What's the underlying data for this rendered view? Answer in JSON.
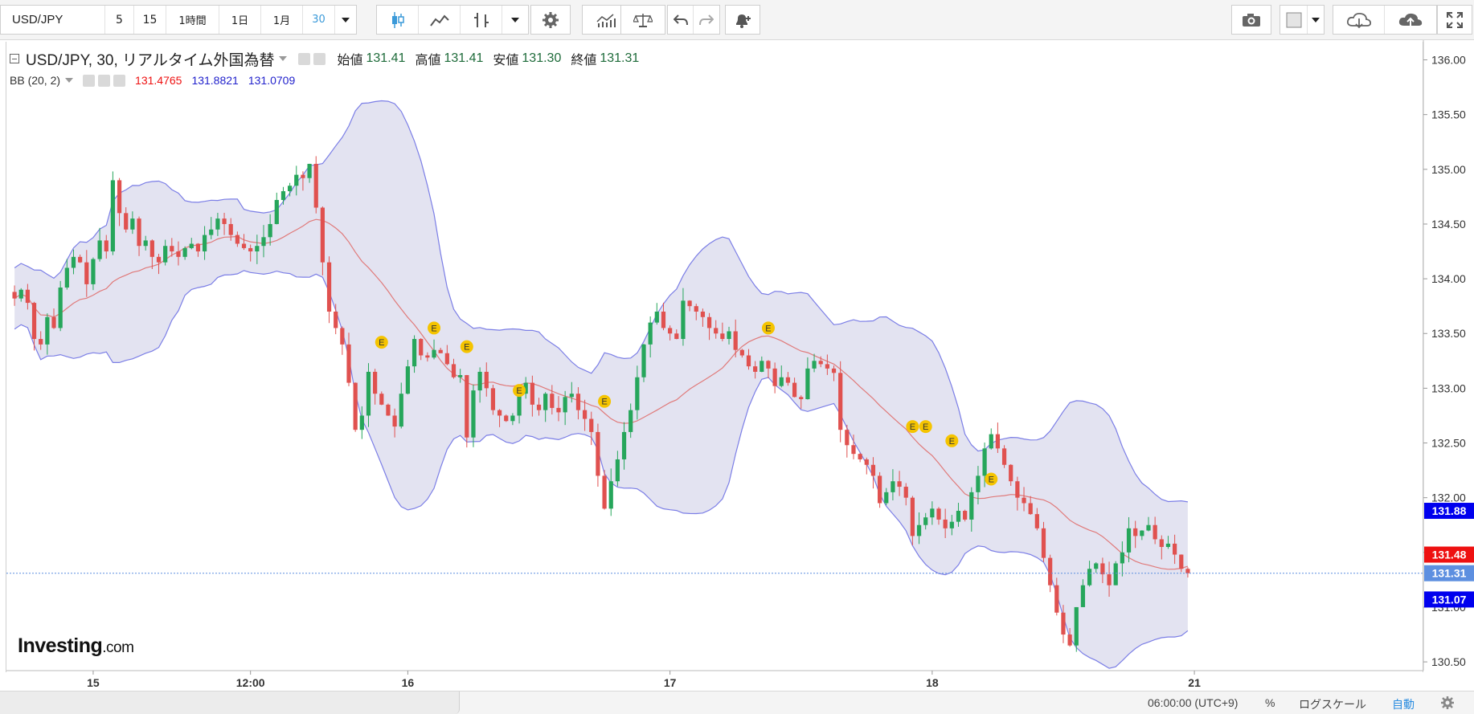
{
  "toolbar": {
    "symbol": "USD/JPY",
    "intervals": [
      "5",
      "15",
      "1時間",
      "1日",
      "1月",
      "30"
    ],
    "active_interval": "30"
  },
  "legend": {
    "title": "USD/JPY, 30, リアルタイム外国為替",
    "open_label": "始値",
    "open": "131.41",
    "high_label": "高値",
    "high": "131.41",
    "low_label": "安値",
    "low": "131.30",
    "close_label": "終値",
    "close": "131.31",
    "indicator": "BB (20, 2)",
    "bb_mid": "131.4765",
    "bb_upper": "131.8821",
    "bb_lower": "131.0709"
  },
  "colors": {
    "up": "#26a65b",
    "down": "#e0514f",
    "band_fill": "#e3e3f1",
    "band_line": "#7b7ee6",
    "mid_line": "#e07a7a",
    "price_tag": "#5d8fe0",
    "blue_tag": "#0000ee",
    "red_tag": "#ee1111"
  },
  "brand": {
    "name": "Investing",
    "suffix": ".com"
  },
  "status": {
    "time": "06:00:00 (UTC+9)",
    "percent": "%",
    "log": "ログスケール",
    "auto": "自動"
  },
  "chart_data": {
    "type": "candlestick",
    "title": "USD/JPY, 30, リアルタイム外国為替",
    "ylim": [
      130.42,
      136.18
    ],
    "y_ticks": [
      "136.00",
      "135.50",
      "135.00",
      "134.50",
      "134.00",
      "133.50",
      "133.00",
      "132.50",
      "132.00",
      "131.50",
      "131.00",
      "130.50"
    ],
    "x_tick_labels": [
      {
        "label": "15",
        "bar": 12
      },
      {
        "label": "12:00",
        "bar": 36
      },
      {
        "label": "16",
        "bar": 60
      },
      {
        "label": "17",
        "bar": 100
      },
      {
        "label": "18",
        "bar": 140
      },
      {
        "label": "21",
        "bar": 180
      }
    ],
    "price_tags": [
      {
        "value": "131.88",
        "kind": "upper"
      },
      {
        "value": "131.48",
        "kind": "mid"
      },
      {
        "value": "131.31",
        "kind": "last"
      },
      {
        "value": "131.07",
        "kind": "lower"
      }
    ],
    "close": [
      133.82,
      133.9,
      133.78,
      133.45,
      133.4,
      133.65,
      133.55,
      133.92,
      134.1,
      134.2,
      134.15,
      133.95,
      134.18,
      134.35,
      134.25,
      134.9,
      134.6,
      134.45,
      134.55,
      134.3,
      134.35,
      134.2,
      134.15,
      134.3,
      134.25,
      134.2,
      134.28,
      134.32,
      134.25,
      134.4,
      134.45,
      134.55,
      134.5,
      134.4,
      134.32,
      134.28,
      134.25,
      134.3,
      134.38,
      134.5,
      134.72,
      134.8,
      134.85,
      134.95,
      134.92,
      135.05,
      134.65,
      134.15,
      133.7,
      133.55,
      133.4,
      133.05,
      132.62,
      132.75,
      133.15,
      132.95,
      132.85,
      132.75,
      132.65,
      132.95,
      133.2,
      133.45,
      133.3,
      133.28,
      133.35,
      133.32,
      133.22,
      133.1,
      133.12,
      132.55,
      132.98,
      133.15,
      133.0,
      132.8,
      132.75,
      132.7,
      132.75,
      132.95,
      133.05,
      132.85,
      132.8,
      132.95,
      132.82,
      132.78,
      132.92,
      132.95,
      132.8,
      132.72,
      132.6,
      132.2,
      131.9,
      132.15,
      132.35,
      132.6,
      132.8,
      133.1,
      133.4,
      133.6,
      133.7,
      133.55,
      133.5,
      133.45,
      133.8,
      133.75,
      133.7,
      133.65,
      133.55,
      133.5,
      133.45,
      133.52,
      133.35,
      133.3,
      133.2,
      133.15,
      133.25,
      133.18,
      133.02,
      133.1,
      133.05,
      132.92,
      132.9,
      133.18,
      133.25,
      133.22,
      133.18,
      133.14,
      132.62,
      132.48,
      132.4,
      132.35,
      132.3,
      132.2,
      131.95,
      132.05,
      132.15,
      132.1,
      132.0,
      131.65,
      131.75,
      131.82,
      131.9,
      131.8,
      131.72,
      131.78,
      131.88,
      131.8,
      132.05,
      132.2,
      132.45,
      132.58,
      132.45,
      132.3,
      132.15,
      132.0,
      131.95,
      131.85,
      131.72,
      131.45,
      131.2,
      130.95,
      130.75,
      130.65,
      131.0,
      131.2,
      131.35,
      131.4,
      131.3,
      131.2,
      131.4,
      131.5,
      131.72,
      131.65,
      131.7,
      131.75,
      131.62,
      131.55,
      131.58,
      131.48,
      131.35,
      131.31
    ]
  }
}
